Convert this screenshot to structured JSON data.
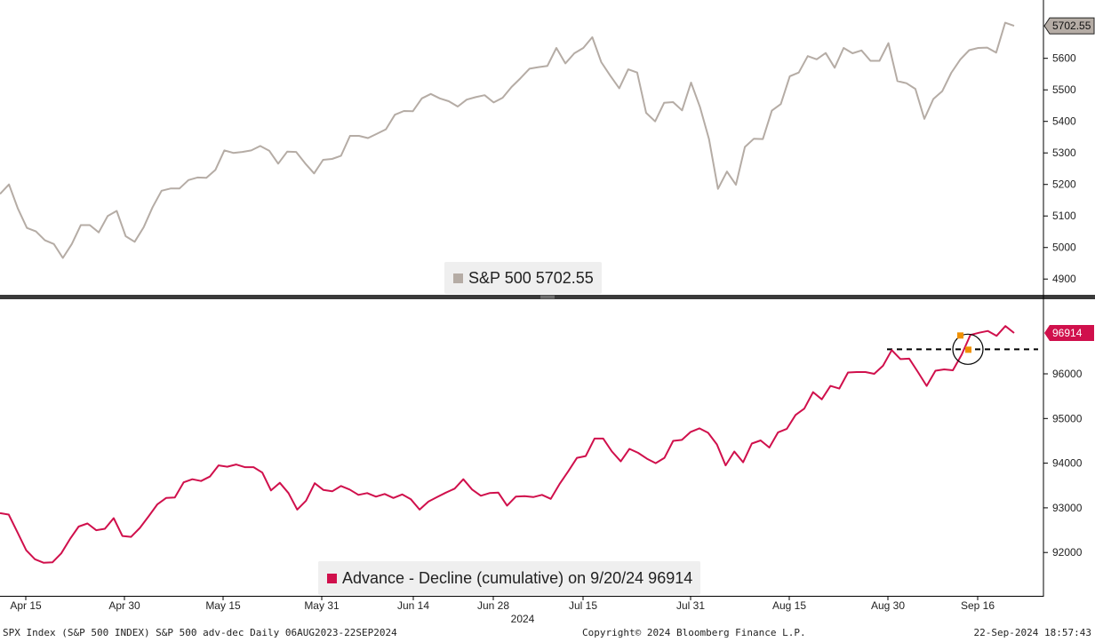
{
  "colors": {
    "spx_line": "#b5aca5",
    "ad_line": "#d0104c",
    "marker": "#f09000",
    "axis": "#000000",
    "divider": "#3a3a3a"
  },
  "legend": {
    "spx": "S&P 500 5702.55",
    "ad": "Advance - Decline (cumulative) on 9/20/24 96914"
  },
  "footer": {
    "left": "SPX Index (S&P 500 INDEX) S&P 500 adv-dec  Daily 06AUG2023-22SEP2024",
    "center": "Copyright© 2024 Bloomberg Finance L.P.",
    "right": "22-Sep-2024 18:57:43"
  },
  "chart_data": [
    {
      "type": "line",
      "series": [
        {
          "name": "S&P 500",
          "values": [
            5170,
            5200,
            5123,
            5062,
            5051,
            5023,
            5011,
            4967,
            5011,
            5071,
            5071,
            5048,
            5100,
            5116,
            5036,
            5018,
            5064,
            5128,
            5180,
            5187,
            5187,
            5214,
            5222,
            5221,
            5246,
            5308,
            5300,
            5303,
            5308,
            5322,
            5307,
            5266,
            5304,
            5303,
            5267,
            5235,
            5278,
            5281,
            5291,
            5354,
            5354,
            5347,
            5361,
            5375,
            5421,
            5433,
            5432,
            5473,
            5487,
            5473,
            5464,
            5447,
            5469,
            5477,
            5483,
            5460,
            5475,
            5509,
            5537,
            5567,
            5572,
            5576,
            5633,
            5584,
            5616,
            5633,
            5667,
            5588,
            5545,
            5505,
            5565,
            5555,
            5427,
            5400,
            5459,
            5461,
            5435,
            5523,
            5445,
            5344,
            5186,
            5241,
            5199,
            5319,
            5345,
            5344,
            5434,
            5455,
            5543,
            5555,
            5607,
            5597,
            5617,
            5570,
            5633,
            5616,
            5625,
            5592,
            5592,
            5648,
            5528,
            5521,
            5503,
            5408,
            5471,
            5496,
            5554,
            5596,
            5626,
            5633,
            5634,
            5618,
            5713,
            5703
          ]
        }
      ],
      "x_ticks": [
        "Apr 15",
        "Apr 30",
        "May 15",
        "May 31",
        "Jun 14",
        "Jun 28",
        "Jul 15",
        "Jul 31",
        "Aug 15",
        "Aug 30",
        "Sep 16"
      ],
      "year_label": "2024",
      "y_ticks": [
        4900,
        5000,
        5100,
        5200,
        5300,
        5400,
        5500,
        5600
      ],
      "ylim": [
        4850,
        5785
      ],
      "last_value_label": "5702.55"
    },
    {
      "type": "line",
      "series": [
        {
          "name": "Advance - Decline (cumulative)",
          "values": [
            92880,
            92850,
            92450,
            92050,
            91850,
            91770,
            91780,
            91980,
            92300,
            92580,
            92650,
            92500,
            92530,
            92770,
            92370,
            92350,
            92550,
            92810,
            93080,
            93220,
            93230,
            93570,
            93640,
            93600,
            93700,
            93950,
            93920,
            93970,
            93910,
            93910,
            93790,
            93390,
            93560,
            93330,
            92960,
            93160,
            93550,
            93400,
            93370,
            93490,
            93410,
            93290,
            93330,
            93250,
            93310,
            93220,
            93300,
            93190,
            92960,
            93140,
            93240,
            93340,
            93430,
            93640,
            93410,
            93270,
            93330,
            93340,
            93050,
            93250,
            93260,
            93240,
            93290,
            93200,
            93530,
            93820,
            94120,
            94160,
            94550,
            94550,
            94260,
            94040,
            94320,
            94230,
            94100,
            94000,
            94120,
            94500,
            94520,
            94700,
            94780,
            94680,
            94420,
            93950,
            94260,
            94020,
            94440,
            94510,
            94350,
            94690,
            94770,
            95080,
            95220,
            95590,
            95430,
            95730,
            95670,
            96030,
            96040,
            96040,
            96000,
            96180,
            96530,
            96330,
            96340,
            96040,
            95730,
            96070,
            96100,
            96080,
            96430,
            96870,
            96920,
            96960,
            96850,
            97070,
            96914
          ]
        }
      ],
      "ref_line_value": 96550,
      "y_ticks": [
        92000,
        93000,
        94000,
        95000,
        96000
      ],
      "ylim": [
        91030,
        97670
      ],
      "last_value_label": "96914"
    }
  ]
}
